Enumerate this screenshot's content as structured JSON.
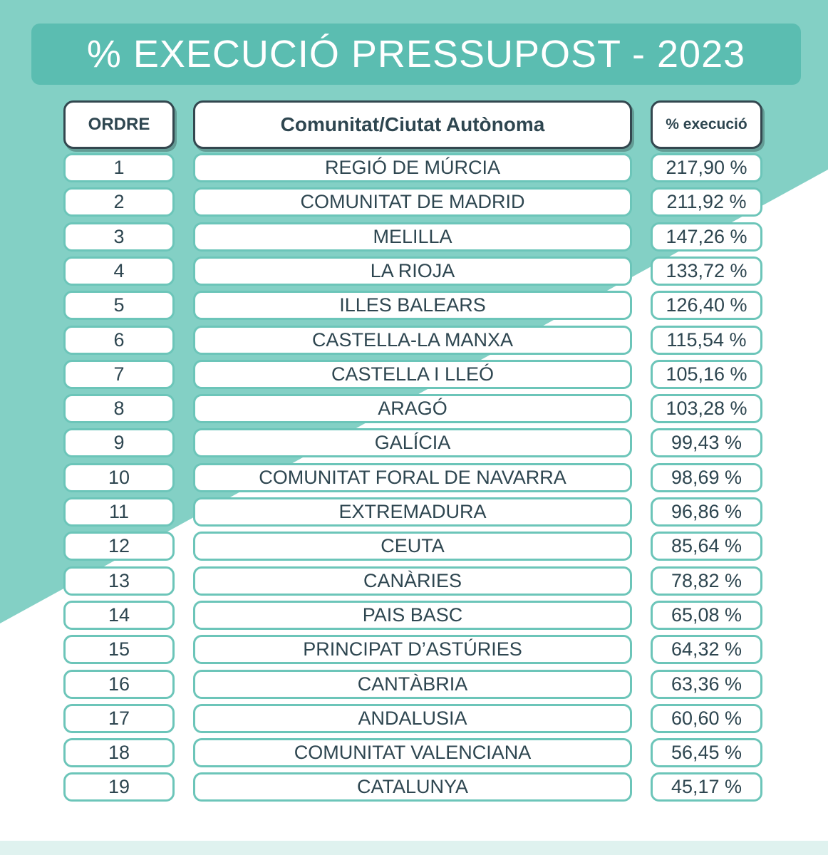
{
  "title": "% EXECUCIÓ PRESSUPOST - 2023",
  "colors": {
    "teal": "#5bbdb1",
    "light_teal": "#83d0c5",
    "border": "#6cc5b9",
    "text": "#2e4650"
  },
  "columns": {
    "order": "ORDRE",
    "community": "Comunitat/Ciutat Autònoma",
    "percent": "% execució"
  },
  "rows": [
    {
      "order": "1",
      "community": "REGIÓ DE MÚRCIA",
      "percent": "217,90 %"
    },
    {
      "order": "2",
      "community": "COMUNITAT DE MADRID",
      "percent": "211,92 %"
    },
    {
      "order": "3",
      "community": "MELILLA",
      "percent": "147,26 %"
    },
    {
      "order": "4",
      "community": "LA RIOJA",
      "percent": "133,72 %"
    },
    {
      "order": "5",
      "community": "ILLES BALEARS",
      "percent": "126,40 %"
    },
    {
      "order": "6",
      "community": "CASTELLA-LA MANXA",
      "percent": "115,54 %"
    },
    {
      "order": "7",
      "community": "CASTELLA I LLEÓ",
      "percent": "105,16 %"
    },
    {
      "order": "8",
      "community": "ARAGÓ",
      "percent": "103,28 %"
    },
    {
      "order": "9",
      "community": "GALÍCIA",
      "percent": "99,43 %"
    },
    {
      "order": "10",
      "community": "COMUNITAT FORAL DE NAVARRA",
      "percent": "98,69 %"
    },
    {
      "order": "11",
      "community": "EXTREMADURA",
      "percent": "96,86 %"
    },
    {
      "order": "12",
      "community": "CEUTA",
      "percent": "85,64 %"
    },
    {
      "order": "13",
      "community": "CANÀRIES",
      "percent": "78,82 %"
    },
    {
      "order": "14",
      "community": "PAIS BASC",
      "percent": "65,08 %"
    },
    {
      "order": "15",
      "community": "PRINCIPAT D’ASTÚRIES",
      "percent": "64,32 %"
    },
    {
      "order": "16",
      "community": "CANTÀBRIA",
      "percent": "63,36 %"
    },
    {
      "order": "17",
      "community": "ANDALUSIA",
      "percent": "60,60 %"
    },
    {
      "order": "18",
      "community": "COMUNITAT VALENCIANA",
      "percent": "56,45 %"
    },
    {
      "order": "19",
      "community": "CATALUNYA",
      "percent": "45,17 %"
    }
  ]
}
